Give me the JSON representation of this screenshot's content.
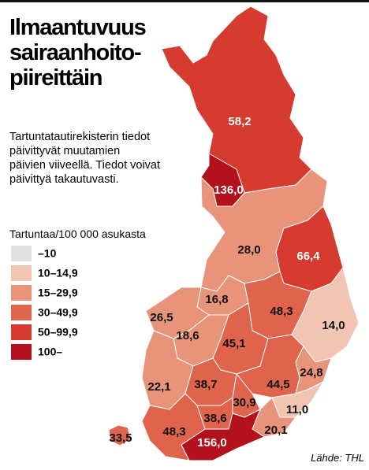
{
  "header": {
    "title": [
      "Ilmaantuvuus",
      "sairaanhoito-",
      "piireittäin"
    ]
  },
  "description": [
    "Tartuntatautirekisterin tiedot",
    "päivittyvät muutamien",
    "päivien viiveellä. Tiedot voivat",
    "päivittyä takautuvasti."
  ],
  "legend": {
    "title": "Tartuntaa/100 000 asukasta",
    "items": [
      {
        "label": "–10",
        "color": "#e0e0e0"
      },
      {
        "label": "10–14,9",
        "color": "#f2c4b3"
      },
      {
        "label": "15–29,9",
        "color": "#e8947a"
      },
      {
        "label": "30–49,9",
        "color": "#e0634c"
      },
      {
        "label": "50–99,9",
        "color": "#d63b2f"
      },
      {
        "label": "100–",
        "color": "#b3111b"
      }
    ]
  },
  "regions": [
    {
      "label": "58,2",
      "color": "#d63b2f"
    },
    {
      "label": "136,0",
      "color": "#b3111b"
    },
    {
      "label": "28,0",
      "color": "#e8947a"
    },
    {
      "label": "66,4",
      "color": "#d63b2f"
    },
    {
      "label": "16,8",
      "color": "#e8947a"
    },
    {
      "label": "26,5",
      "color": "#e8947a"
    },
    {
      "label": "48,3",
      "color": "#e0634c"
    },
    {
      "label": "14,0",
      "color": "#f2c4b3"
    },
    {
      "label": "18,6",
      "color": "#e8947a"
    },
    {
      "label": "45,1",
      "color": "#e0634c"
    },
    {
      "label": "22,1",
      "color": "#e8947a"
    },
    {
      "label": "38,7",
      "color": "#e0634c"
    },
    {
      "label": "44,5",
      "color": "#e0634c"
    },
    {
      "label": "24,8",
      "color": "#e8947a"
    },
    {
      "label": "30,9",
      "color": "#e0634c"
    },
    {
      "label": "38,6",
      "color": "#e0634c"
    },
    {
      "label": "11,0",
      "color": "#f2c4b3"
    },
    {
      "label": "20,1",
      "color": "#e8947a"
    },
    {
      "label": "156,0",
      "color": "#b3111b"
    },
    {
      "label": "48,3",
      "color": "#e0634c"
    },
    {
      "label": "33,5",
      "color": "#e0634c"
    }
  ],
  "source": "Lähde: THL"
}
